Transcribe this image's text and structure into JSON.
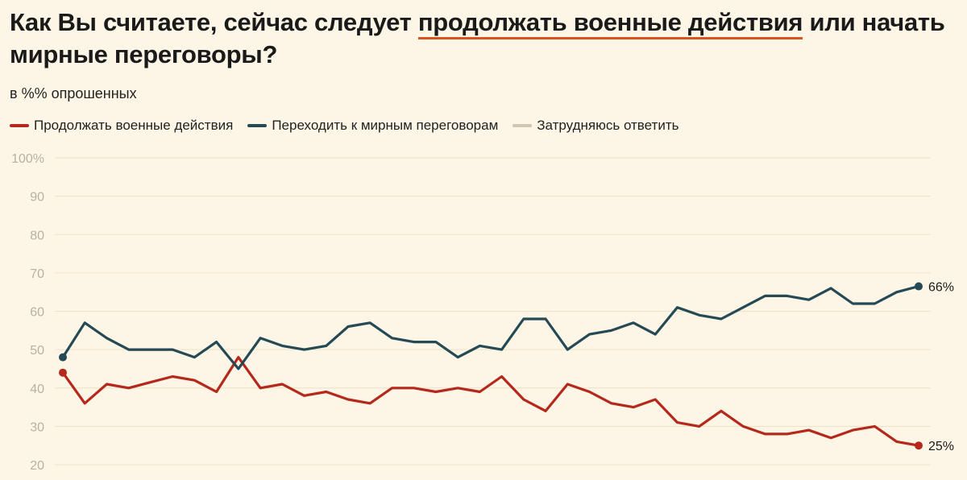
{
  "title_parts": {
    "before": "Как Вы считаете, сейчас следует ",
    "highlight": "продолжать военные действия",
    "after": " или начать мирные переговоры?"
  },
  "subtitle": "в %% опрошенных",
  "legend": [
    {
      "label": "Продолжать военные действия",
      "color": "#b5281c"
    },
    {
      "label": "Переходить к мирным переговорам",
      "color": "#254a55"
    },
    {
      "label": "Затрудняюсь ответить",
      "color": "#cfc6b4"
    }
  ],
  "chart_data": {
    "type": "line",
    "title": "Как Вы считаете, сейчас следует продолжать военные действия или начать мирные переговоры?",
    "subtitle": "в %% опрошенных",
    "y_ticks": [
      "100%",
      "90",
      "80",
      "70",
      "60",
      "50",
      "40",
      "30",
      "20"
    ],
    "ylim": [
      20,
      100
    ],
    "series": [
      {
        "name": "Продолжать военные действия",
        "color": "#b5281c",
        "end_label": "25%",
        "values": [
          44,
          36,
          41,
          40,
          41.5,
          43,
          42,
          39,
          48,
          40,
          41,
          38,
          39,
          37,
          36,
          40,
          40,
          39,
          40,
          39,
          43,
          37,
          34,
          41,
          39,
          36,
          35,
          37,
          31,
          30,
          34,
          30,
          28,
          28,
          29,
          27,
          29,
          30,
          26,
          25
        ]
      },
      {
        "name": "Переходить к мирным переговорам",
        "color": "#254a55",
        "end_label": "66%",
        "values": [
          48,
          57,
          53,
          50,
          50,
          50,
          48,
          52,
          45,
          53,
          51,
          50,
          51,
          56,
          57,
          53,
          52,
          52,
          48,
          51,
          50,
          58,
          58,
          50,
          54,
          55,
          57,
          54,
          61,
          59,
          58,
          61,
          64,
          64,
          63,
          66,
          62,
          62,
          65,
          66.5
        ]
      }
    ]
  }
}
